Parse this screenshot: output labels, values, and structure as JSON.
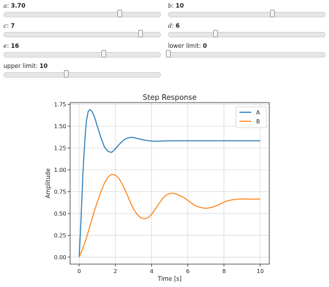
{
  "sliders": [
    {
      "id": "a",
      "var": "a",
      "sep": ":",
      "value": "3.70",
      "min": 0,
      "max": 5,
      "num": 3.7
    },
    {
      "id": "b",
      "var": "b",
      "sep": ":",
      "value": "10",
      "min": 0,
      "max": 15,
      "num": 10
    },
    {
      "id": "c",
      "var": "c",
      "sep": ":",
      "value": "7",
      "min": 0,
      "max": 8,
      "num": 7
    },
    {
      "id": "d",
      "var": "d",
      "sep": ":",
      "value": "6",
      "min": 0,
      "max": 20,
      "num": 6
    },
    {
      "id": "e",
      "var": "e",
      "sep": ":",
      "value": "16",
      "min": 0,
      "max": 25,
      "num": 16
    },
    {
      "id": "lower",
      "var": "lower limit",
      "sep": ":",
      "value": "0",
      "min": 0,
      "max": 10,
      "num": 0
    },
    {
      "id": "upper",
      "var": "upper limit",
      "sep": ":",
      "value": "10",
      "min": 0,
      "max": 25,
      "num": 10
    }
  ],
  "chart_data": {
    "type": "line",
    "title": "Step Response",
    "xlabel": "Time [s]",
    "ylabel": "Amplitude",
    "xlim": [
      -0.5,
      10.5
    ],
    "ylim": [
      -0.08,
      1.77
    ],
    "xticks": [
      0,
      2,
      4,
      6,
      8,
      10
    ],
    "yticks": [
      0.0,
      0.25,
      0.5,
      0.75,
      1.0,
      1.25,
      1.5,
      1.75
    ],
    "grid": true,
    "legend_position": "top-right",
    "series": [
      {
        "name": "A",
        "color": "#1f77b4",
        "x": [
          0,
          0.1,
          0.2,
          0.3,
          0.4,
          0.5,
          0.6,
          0.7,
          0.8,
          0.9,
          1.0,
          1.2,
          1.4,
          1.6,
          1.8,
          2.0,
          2.2,
          2.4,
          2.6,
          2.8,
          3.0,
          3.2,
          3.4,
          3.6,
          3.8,
          4.0,
          4.2,
          4.4,
          4.6,
          4.8,
          5.0,
          5.5,
          6.0,
          6.5,
          7.0,
          7.5,
          8.0,
          8.5,
          9.0,
          9.5,
          10.0
        ],
        "values": [
          0,
          0.42,
          0.92,
          1.3,
          1.56,
          1.67,
          1.69,
          1.67,
          1.63,
          1.57,
          1.5,
          1.37,
          1.26,
          1.21,
          1.2,
          1.24,
          1.29,
          1.33,
          1.36,
          1.37,
          1.37,
          1.36,
          1.35,
          1.34,
          1.335,
          1.33,
          1.328,
          1.328,
          1.33,
          1.332,
          1.333,
          1.333,
          1.333,
          1.333,
          1.333,
          1.333,
          1.333,
          1.333,
          1.333,
          1.333,
          1.333
        ]
      },
      {
        "name": "B",
        "color": "#ff7f0e",
        "x": [
          0,
          0.2,
          0.4,
          0.6,
          0.8,
          1.0,
          1.2,
          1.4,
          1.6,
          1.8,
          2.0,
          2.2,
          2.4,
          2.6,
          2.8,
          3.0,
          3.2,
          3.4,
          3.6,
          3.8,
          4.0,
          4.2,
          4.4,
          4.6,
          4.8,
          5.0,
          5.2,
          5.4,
          5.6,
          5.8,
          6.0,
          6.2,
          6.4,
          6.6,
          6.8,
          7.0,
          7.2,
          7.4,
          7.6,
          7.8,
          8.0,
          8.2,
          8.4,
          8.6,
          8.8,
          9.0,
          9.2,
          9.4,
          9.6,
          9.8,
          10.0
        ],
        "values": [
          0,
          0.1,
          0.22,
          0.36,
          0.5,
          0.63,
          0.75,
          0.85,
          0.92,
          0.95,
          0.94,
          0.9,
          0.83,
          0.74,
          0.64,
          0.55,
          0.49,
          0.45,
          0.44,
          0.45,
          0.49,
          0.55,
          0.61,
          0.67,
          0.71,
          0.73,
          0.73,
          0.72,
          0.7,
          0.68,
          0.65,
          0.62,
          0.59,
          0.575,
          0.565,
          0.56,
          0.565,
          0.575,
          0.59,
          0.61,
          0.63,
          0.645,
          0.655,
          0.66,
          0.665,
          0.667,
          0.666,
          0.665,
          0.664,
          0.665,
          0.666
        ]
      }
    ]
  }
}
